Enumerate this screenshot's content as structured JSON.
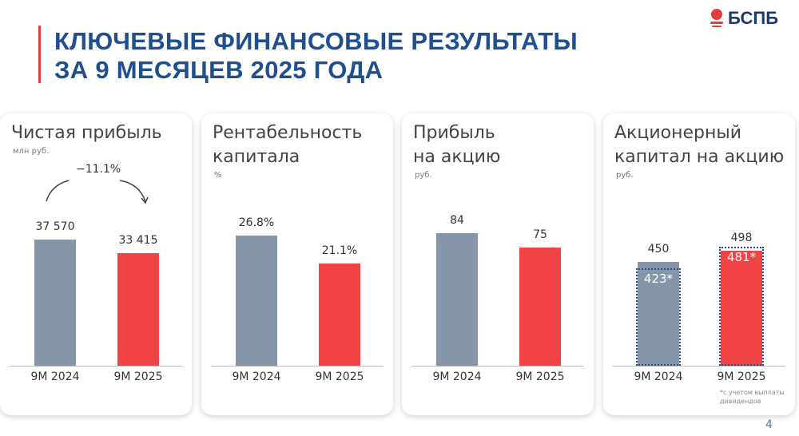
{
  "header": {
    "title_line1": "КЛЮЧЕВЫЕ ФИНАНСОВЫЕ РЕЗУЛЬТАТЫ",
    "title_line2": "ЗА 9 МЕСЯЦЕВ 2025 ГОДА",
    "logo": "БСПБ"
  },
  "page_number": "4",
  "colors": {
    "prev": "#8795a8",
    "curr": "#f24444",
    "title": "#1f4f8f",
    "accent": "#e63c3c"
  },
  "chart_data": [
    {
      "type": "bar",
      "title": "Чистая прибыль",
      "unit": "млн руб.",
      "categories": [
        "9M 2024",
        "9M 2025"
      ],
      "values": [
        37570,
        33415
      ],
      "labels": [
        "37 570",
        "33 415"
      ],
      "annotation": "−11.1%"
    },
    {
      "type": "bar",
      "title": "Рентабельность капитала",
      "unit": "%",
      "categories": [
        "9M 2024",
        "9M 2025"
      ],
      "values": [
        26.8,
        21.1
      ],
      "labels": [
        "26.8%",
        "21.1%"
      ]
    },
    {
      "type": "bar",
      "title": "Прибыль на акцию",
      "unit": "руб.",
      "categories": [
        "9M 2024",
        "9M 2025"
      ],
      "values": [
        84,
        75
      ],
      "labels": [
        "84",
        "75"
      ]
    },
    {
      "type": "bar",
      "title": "Акционерный капитал на акцию",
      "unit": "руб.",
      "categories": [
        "9M 2024",
        "9M 2025"
      ],
      "values": [
        450,
        498
      ],
      "labels": [
        "450",
        "498"
      ],
      "adjusted_values": [
        423,
        481
      ],
      "adjusted_labels": [
        "423*",
        "481*"
      ],
      "footnote": "*с учетом выплаты дивидендов"
    }
  ],
  "titles": [
    "Чистая прибыль",
    "Рентабельность\nкапитала",
    "Прибыль\nна акцию",
    "Акционерный\nкапитал на акцию"
  ]
}
